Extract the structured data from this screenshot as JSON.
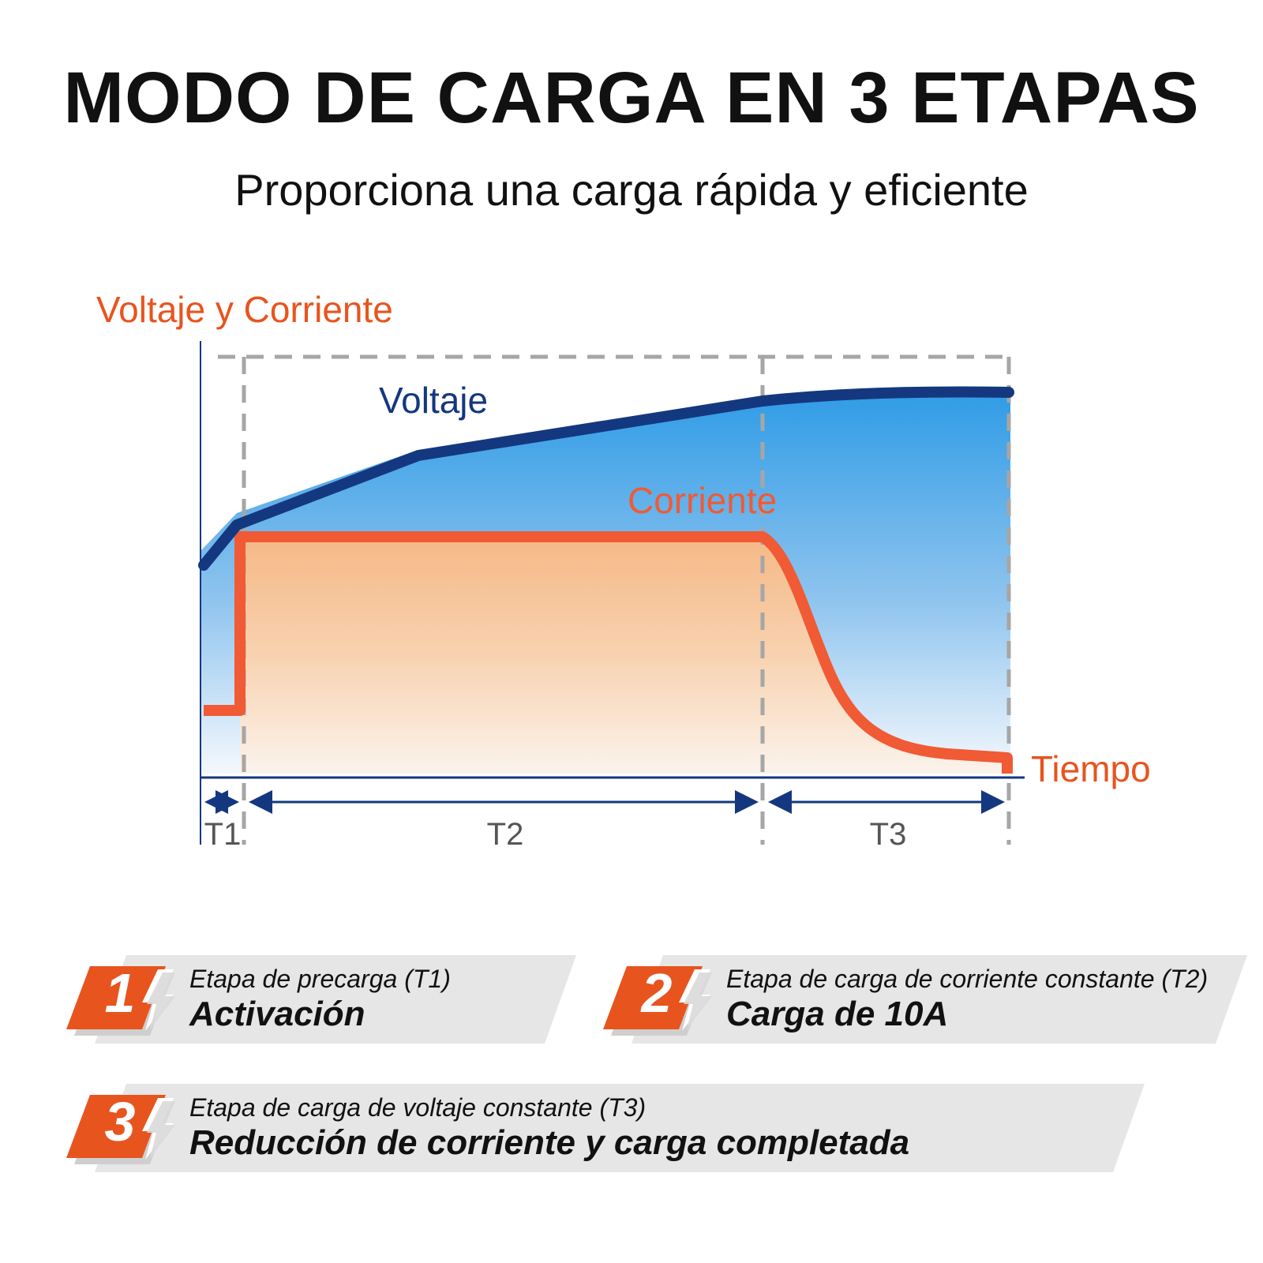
{
  "header": {
    "title": "MODO DE CARGA EN 3 ETAPAS",
    "subtitle": "Proporciona una carga rápida y eficiente"
  },
  "diagram": {
    "y_axis_label": "Voltaje y Corriente",
    "x_axis_label": "Tiempo",
    "voltage_label": "Voltaje",
    "current_label": "Corriente",
    "periods": [
      "T1",
      "T2",
      "T3"
    ],
    "colors": {
      "voltage": "#14387f",
      "current": "#f05a35",
      "axis": "#14387f",
      "divider": "#a6a6a6",
      "label_orange": "#e8541e"
    }
  },
  "stages": [
    {
      "number": "1",
      "title": "Etapa de precarga (T1)",
      "description": "Activación"
    },
    {
      "number": "2",
      "title": "Etapa de carga de corriente constante (T2)",
      "description": "Carga de 10A"
    },
    {
      "number": "3",
      "title": "Etapa de carga de voltaje constante (T3)",
      "description": "Reducción de corriente y carga completada"
    }
  ]
}
